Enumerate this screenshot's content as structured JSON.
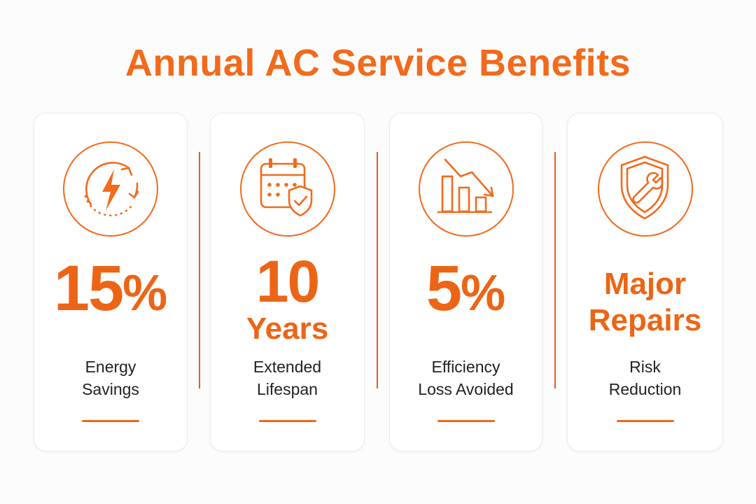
{
  "title": "Annual AC Service Benefits",
  "colors": {
    "accent": "#f26a1b",
    "text": "#222222",
    "background": "#fcfcfc",
    "card": "#ffffff"
  },
  "cards": [
    {
      "icon": "lightning-cycle-icon",
      "value": "15",
      "unit": "%",
      "label_line1": "Energy",
      "label_line2": "Savings"
    },
    {
      "icon": "calendar-shield-icon",
      "value": "10",
      "unit": "Years",
      "label_line1": "Extended",
      "label_line2": "Lifespan"
    },
    {
      "icon": "declining-bar-chart-icon",
      "value": "5",
      "unit": "%",
      "label_line1": "Efficiency",
      "label_line2": "Loss Avoided"
    },
    {
      "icon": "shield-wrench-icon",
      "value_line1": "Major",
      "value_line2": "Repairs",
      "label_line1": "Risk",
      "label_line2": "Reduction"
    }
  ]
}
